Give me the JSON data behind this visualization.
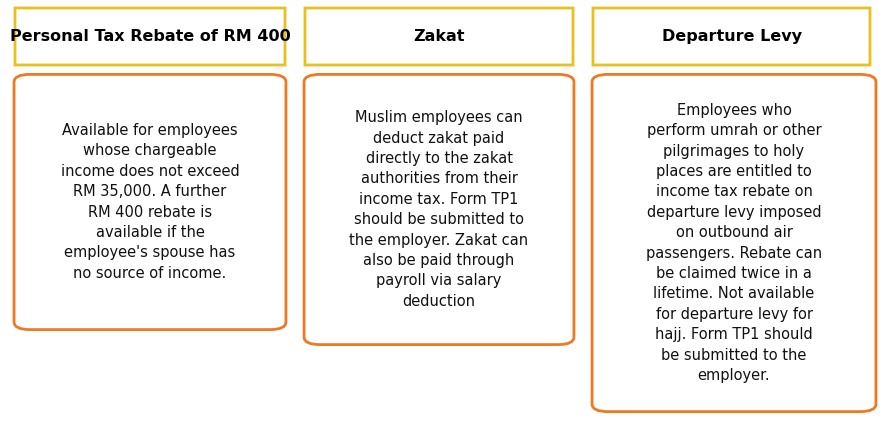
{
  "background_color": "#ffffff",
  "header_border_color": "#e8c020",
  "body_border_color": "#f07820",
  "header_fill_color": "#ffffff",
  "body_fill_color": "#ffffff",
  "header_text_color": "#000000",
  "body_text_color": "#111111",
  "headers": [
    "Personal Tax Rebate of RM 400",
    "Zakat",
    "Departure Levy"
  ],
  "bodies": [
    "Available for employees\nwhose chargeable\nincome does not exceed\nRM 35,000. A further\nRM 400 rebate is\navailable if the\nemployee's spouse has\nno source of income.",
    "Muslim employees can\ndeduct zakat paid\ndirectly to the zakat\nauthorities from their\nincome tax. Form TP1\nshould be submitted to\nthe employer. Zakat can\nalso be paid through\npayroll via salary\ndeduction",
    "Employees who\nperform umrah or other\npilgrimages to holy\nplaces are entitled to\nincome tax rebate on\ndeparture levy imposed\non outbound air\npassengers. Rebate can\nbe claimed twice in a\nlifetime. Not available\nfor departure levy for\nhajj. Form TP1 should\nbe submitted to the\nemployer."
  ],
  "header_fontsize": 11.5,
  "body_fontsize": 10.5,
  "header_fontstyle": "bold",
  "fig_width": 8.85,
  "fig_height": 4.22,
  "dpi": 100
}
